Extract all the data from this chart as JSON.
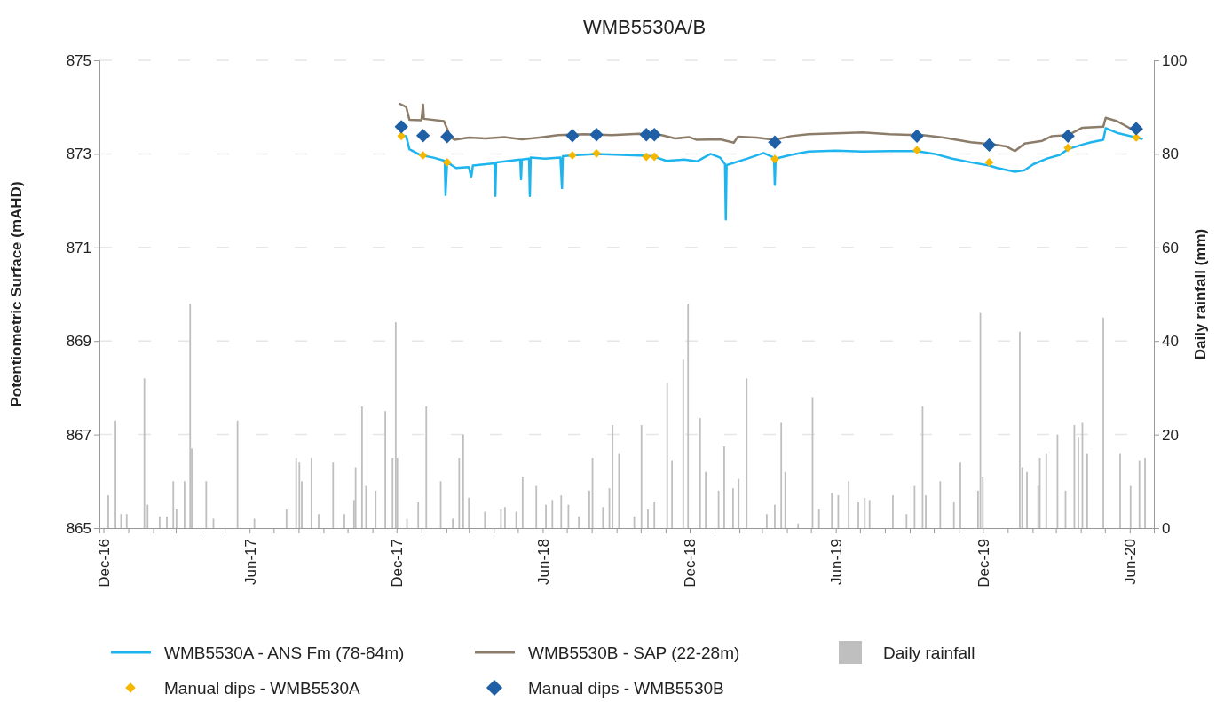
{
  "chart_data": {
    "type": "line",
    "title": "WMB5530A/B",
    "ylabel": "Potentiometric Surface (mAHD)",
    "y2label": "Daily rainfall (mm)",
    "xlim": [
      "2016-11-26",
      "2020-07-01"
    ],
    "xticks": [
      {
        "value": "2016-12",
        "label": "Dec-16"
      },
      {
        "value": "2017-01",
        "label": null
      },
      {
        "value": "2017-02",
        "label": null
      },
      {
        "value": "2017-03",
        "label": null
      },
      {
        "value": "2017-04",
        "label": null
      },
      {
        "value": "2017-05",
        "label": null
      },
      {
        "value": "2017-06",
        "label": "Jun-17"
      },
      {
        "value": "2017-07",
        "label": null
      },
      {
        "value": "2017-08",
        "label": null
      },
      {
        "value": "2017-09",
        "label": null
      },
      {
        "value": "2017-10",
        "label": null
      },
      {
        "value": "2017-11",
        "label": null
      },
      {
        "value": "2017-12",
        "label": "Dec-17"
      },
      {
        "value": "2018-01",
        "label": null
      },
      {
        "value": "2018-02",
        "label": null
      },
      {
        "value": "2018-03",
        "label": null
      },
      {
        "value": "2018-04",
        "label": null
      },
      {
        "value": "2018-05",
        "label": null
      },
      {
        "value": "2018-06",
        "label": "Jun-18"
      },
      {
        "value": "2018-07",
        "label": null
      },
      {
        "value": "2018-08",
        "label": null
      },
      {
        "value": "2018-09",
        "label": null
      },
      {
        "value": "2018-10",
        "label": null
      },
      {
        "value": "2018-11",
        "label": null
      },
      {
        "value": "2018-12",
        "label": "Dec-18"
      },
      {
        "value": "2019-01",
        "label": null
      },
      {
        "value": "2019-02",
        "label": null
      },
      {
        "value": "2019-03",
        "label": null
      },
      {
        "value": "2019-04",
        "label": null
      },
      {
        "value": "2019-05",
        "label": null
      },
      {
        "value": "2019-06",
        "label": "Jun-19"
      },
      {
        "value": "2019-07",
        "label": null
      },
      {
        "value": "2019-08",
        "label": null
      },
      {
        "value": "2019-09",
        "label": null
      },
      {
        "value": "2019-10",
        "label": null
      },
      {
        "value": "2019-11",
        "label": null
      },
      {
        "value": "2019-12",
        "label": "Dec-19"
      },
      {
        "value": "2020-01",
        "label": null
      },
      {
        "value": "2020-02",
        "label": null
      },
      {
        "value": "2020-03",
        "label": null
      },
      {
        "value": "2020-04",
        "label": null
      },
      {
        "value": "2020-05",
        "label": null
      },
      {
        "value": "2020-06",
        "label": "Jun-20"
      }
    ],
    "ylim": [
      865,
      875
    ],
    "yticks": [
      865,
      867,
      869,
      871,
      873,
      875
    ],
    "y2lim": [
      0,
      100
    ],
    "y2ticks": [
      0,
      20,
      40,
      60,
      80,
      100
    ],
    "grid": "y",
    "legend": "bottom",
    "series": [
      {
        "name": "Daily rainfall",
        "type": "bar",
        "axis": "y2",
        "color": "#bfbfbf",
        "x": [
          "2016-12-07",
          "2016-12-16",
          "2016-12-23",
          "2016-12-30",
          "2017-01-21",
          "2017-01-25",
          "2017-02-09",
          "2017-02-18",
          "2017-02-26",
          "2017-03-02",
          "2017-03-12",
          "2017-03-19",
          "2017-03-21",
          "2017-04-08",
          "2017-04-17",
          "2017-05-17",
          "2017-06-07",
          "2017-07-17",
          "2017-07-29",
          "2017-08-02",
          "2017-08-05",
          "2017-08-17",
          "2017-08-26",
          "2017-09-13",
          "2017-09-27",
          "2017-10-09",
          "2017-10-11",
          "2017-10-19",
          "2017-10-24",
          "2017-11-05",
          "2017-11-17",
          "2017-11-26",
          "2017-11-30",
          "2017-12-02",
          "2017-12-14",
          "2017-12-28",
          "2018-01-07",
          "2018-01-25",
          "2018-02-09",
          "2018-02-17",
          "2018-02-22",
          "2018-03-01",
          "2018-03-21",
          "2018-04-10",
          "2018-04-15",
          "2018-04-29",
          "2018-05-07",
          "2018-05-24",
          "2018-06-05",
          "2018-06-13",
          "2018-06-24",
          "2018-07-03",
          "2018-07-16",
          "2018-07-29",
          "2018-08-02",
          "2018-08-15",
          "2018-08-23",
          "2018-08-27",
          "2018-09-04",
          "2018-09-23",
          "2018-10-02",
          "2018-10-10",
          "2018-10-18",
          "2018-11-03",
          "2018-11-09",
          "2018-11-23",
          "2018-11-29",
          "2018-12-14",
          "2018-12-21",
          "2019-01-06",
          "2019-01-13",
          "2019-01-24",
          "2019-01-31",
          "2019-02-10",
          "2019-03-07",
          "2019-03-17",
          "2019-03-25",
          "2019-03-30",
          "2019-04-15",
          "2019-05-03",
          "2019-05-11",
          "2019-05-27",
          "2019-06-04",
          "2019-06-17",
          "2019-06-29",
          "2019-07-07",
          "2019-07-13",
          "2019-08-11",
          "2019-08-28",
          "2019-09-07",
          "2019-09-17",
          "2019-09-21",
          "2019-10-09",
          "2019-10-26",
          "2019-11-03",
          "2019-11-25",
          "2019-11-28",
          "2019-12-01",
          "2020-01-16",
          "2020-01-19",
          "2020-01-25",
          "2020-02-08",
          "2020-02-10",
          "2020-02-18",
          "2020-03-03",
          "2020-03-13",
          "2020-03-24",
          "2020-03-29",
          "2020-04-03",
          "2020-04-09",
          "2020-04-29",
          "2020-05-20",
          "2020-06-02",
          "2020-06-13",
          "2020-06-20"
        ],
        "values": [
          7,
          23,
          3,
          3,
          32,
          5,
          2.5,
          2.5,
          10,
          4,
          10,
          48,
          17,
          10,
          2,
          23,
          2,
          4,
          15,
          14,
          10,
          15,
          3,
          14,
          3,
          6,
          13,
          26,
          9,
          8,
          25,
          15,
          44,
          15,
          2,
          5.5,
          26,
          10,
          2,
          15,
          20,
          6.5,
          3.5,
          4,
          4.5,
          3.5,
          11,
          9,
          5,
          6,
          7,
          5,
          2.5,
          8,
          15,
          4.5,
          8.5,
          22,
          16,
          2.5,
          22,
          4,
          5.5,
          31,
          14.5,
          36,
          48,
          23.5,
          12,
          8,
          17.5,
          8.5,
          10.5,
          32,
          3,
          5,
          22.5,
          12,
          1,
          28,
          4,
          7.5,
          7,
          10,
          5.5,
          6.5,
          6,
          7,
          3,
          9,
          26,
          7,
          10,
          5.5,
          14,
          8,
          46,
          11,
          42,
          13,
          12,
          9,
          15,
          16,
          20,
          8,
          22,
          19.5,
          22.5,
          16,
          45,
          16,
          9,
          14.5,
          15
        ]
      },
      {
        "name": "WMB5530A - ANS Fm (78-84m)",
        "color": "#1eb4ee",
        "marker": "none",
        "x": [
          "2017-12-05",
          "2017-12-13",
          "2017-12-17",
          "2017-12-30",
          "2018-01-16",
          "2018-01-30",
          "2018-01-31",
          "2018-02-02",
          "2018-02-13",
          "2018-03-01",
          "2018-03-04",
          "2018-03-06",
          "2018-04-02",
          "2018-04-03",
          "2018-04-04",
          "2018-04-20",
          "2018-05-04",
          "2018-05-05",
          "2018-05-06",
          "2018-05-15",
          "2018-05-16",
          "2018-05-17",
          "2018-06-04",
          "2018-06-23",
          "2018-06-25",
          "2018-06-26",
          "2018-07-08",
          "2018-08-07",
          "2018-09-07",
          "2018-10-08",
          "2018-10-18",
          "2018-11-02",
          "2018-11-24",
          "2018-12-10",
          "2018-12-27",
          "2019-01-08",
          "2019-01-14",
          "2019-01-15",
          "2019-01-16",
          "2019-02-11",
          "2019-03-03",
          "2019-03-16",
          "2019-03-17",
          "2019-03-18",
          "2019-04-06",
          "2019-04-28",
          "2019-06-01",
          "2019-07-04",
          "2019-08-07",
          "2019-09-10",
          "2019-10-02",
          "2019-10-24",
          "2019-11-16",
          "2019-12-09",
          "2019-12-19",
          "2020-01-10",
          "2020-01-22",
          "2020-02-02",
          "2020-02-19",
          "2020-03-06",
          "2020-03-16",
          "2020-04-03",
          "2020-04-14",
          "2020-04-29",
          "2020-05-02",
          "2020-05-16",
          "2020-06-09",
          "2020-06-16"
        ],
        "values": [
          873.4,
          873.38,
          873.1,
          872.98,
          872.92,
          872.85,
          872.12,
          872.82,
          872.7,
          872.72,
          872.5,
          872.75,
          872.8,
          872.1,
          872.82,
          872.85,
          872.88,
          872.46,
          872.88,
          872.9,
          872.1,
          872.92,
          872.9,
          872.92,
          872.27,
          872.95,
          872.97,
          873,
          872.98,
          872.96,
          872.94,
          872.85,
          872.88,
          872.84,
          873,
          872.92,
          872.78,
          871.6,
          872.76,
          872.9,
          873.02,
          872.92,
          872.34,
          872.9,
          872.98,
          873.05,
          873.07,
          873.05,
          873.06,
          873.06,
          873,
          872.9,
          872.82,
          872.75,
          872.7,
          872.62,
          872.65,
          872.78,
          872.9,
          872.98,
          873.1,
          873.2,
          873.25,
          873.3,
          873.55,
          873.45,
          873.35,
          873.32
        ]
      },
      {
        "name": "WMB5530B - SAP (22-28m)",
        "color": "#8c7d6a",
        "marker": "none",
        "x": [
          "2017-12-05",
          "2017-12-13",
          "2017-12-17",
          "2018-01-01",
          "2018-01-03",
          "2018-01-04",
          "2018-01-29",
          "2018-02-06",
          "2018-02-11",
          "2018-03-01",
          "2018-03-22",
          "2018-04-14",
          "2018-05-06",
          "2018-05-28",
          "2018-06-20",
          "2018-07-23",
          "2018-08-26",
          "2018-09-29",
          "2018-10-27",
          "2018-11-13",
          "2018-11-30",
          "2018-12-10",
          "2019-01-08",
          "2019-01-25",
          "2019-01-30",
          "2019-02-22",
          "2019-03-17",
          "2019-04-06",
          "2019-04-28",
          "2019-06-01",
          "2019-07-04",
          "2019-08-07",
          "2019-09-17",
          "2019-10-13",
          "2019-11-16",
          "2019-12-15",
          "2019-12-30",
          "2020-01-10",
          "2020-01-22",
          "2020-02-13",
          "2020-02-25",
          "2020-03-16",
          "2020-04-03",
          "2020-04-29",
          "2020-05-02",
          "2020-05-16",
          "2020-06-01",
          "2020-06-16"
        ],
        "values": [
          874.07,
          874,
          873.73,
          873.72,
          874.05,
          873.75,
          873.7,
          873.37,
          873.3,
          873.35,
          873.33,
          873.36,
          873.31,
          873.35,
          873.4,
          873.42,
          873.4,
          873.43,
          873.4,
          873.33,
          873.36,
          873.3,
          873.31,
          873.24,
          873.37,
          873.35,
          873.3,
          873.38,
          873.42,
          873.44,
          873.46,
          873.42,
          873.4,
          873.35,
          873.25,
          873.2,
          873.16,
          873.06,
          873.22,
          873.28,
          873.38,
          873.4,
          873.56,
          873.58,
          873.77,
          873.7,
          873.55,
          873.52
        ]
      },
      {
        "name": "Manual dips - WMB5530A",
        "type": "scatter",
        "color": "#f5b700",
        "marker": "diamond",
        "x": [
          "2017-12-07",
          "2018-01-03",
          "2018-02-02",
          "2018-07-08",
          "2018-08-07",
          "2018-10-08",
          "2018-10-18",
          "2019-03-17",
          "2019-09-10",
          "2019-12-09",
          "2020-03-16",
          "2020-06-09"
        ],
        "values": [
          873.38,
          872.97,
          872.82,
          872.97,
          873.01,
          872.94,
          872.94,
          872.89,
          873.08,
          872.82,
          873.13,
          873.35
        ]
      },
      {
        "name": "Manual dips - WMB5530B",
        "type": "scatter",
        "color": "#1f5fa6",
        "marker": "diamond",
        "x": [
          "2017-12-07",
          "2018-01-03",
          "2018-02-02",
          "2018-07-08",
          "2018-08-07",
          "2018-10-08",
          "2018-10-18",
          "2019-03-17",
          "2019-09-10",
          "2019-12-09",
          "2020-03-16",
          "2020-06-09"
        ],
        "values": [
          873.58,
          873.39,
          873.37,
          873.39,
          873.41,
          873.41,
          873.41,
          873.25,
          873.38,
          873.19,
          873.38,
          873.54
        ]
      }
    ]
  }
}
